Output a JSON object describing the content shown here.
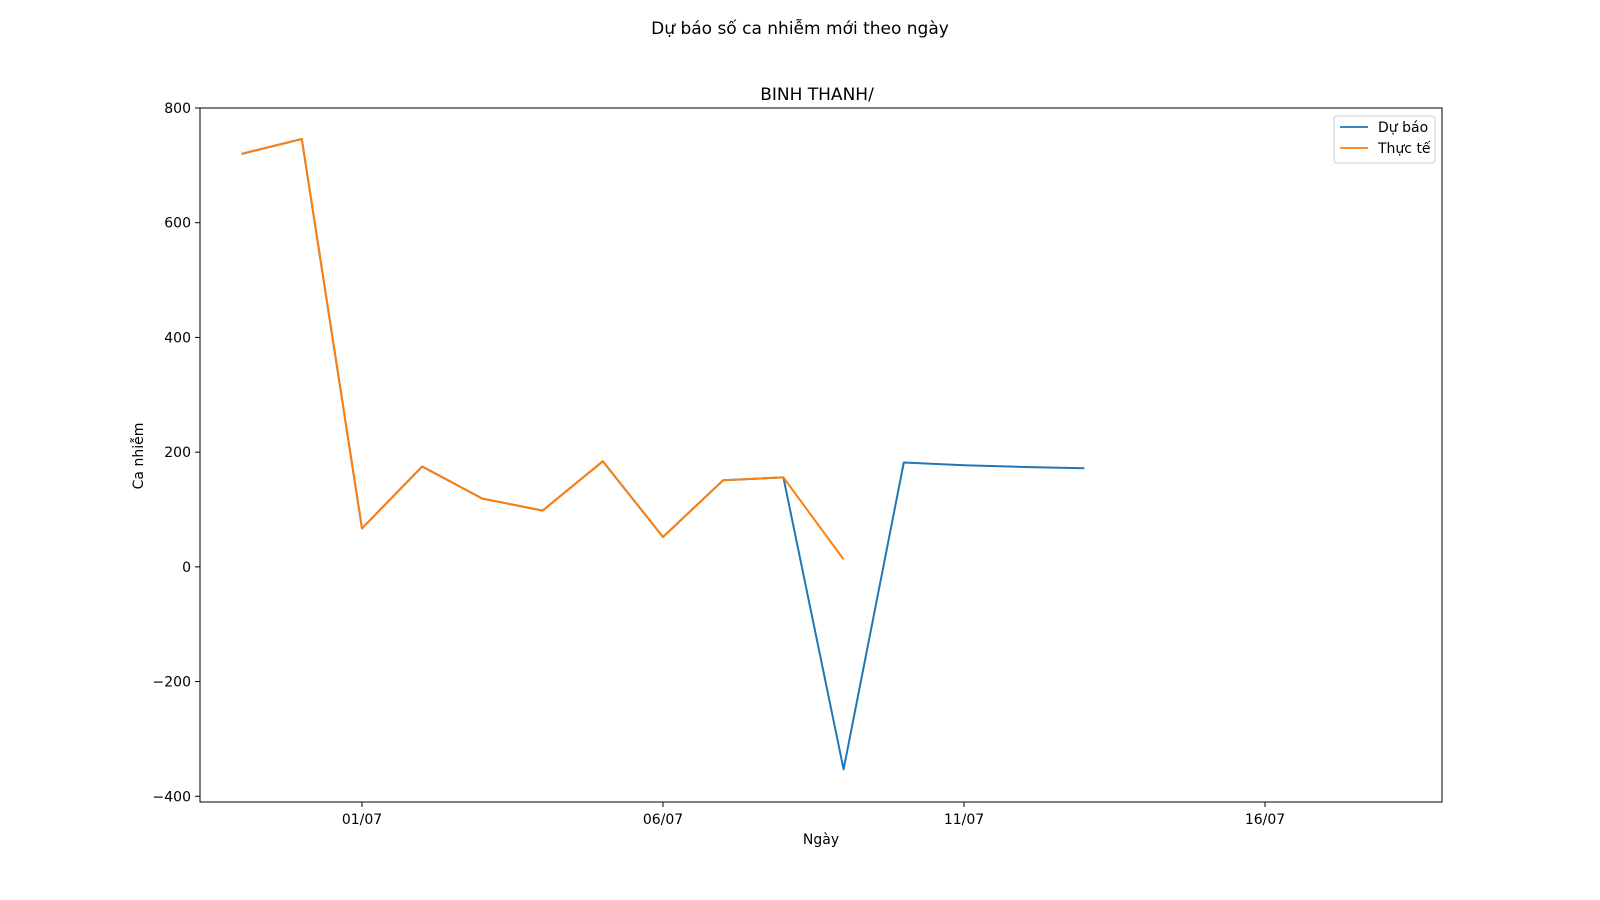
{
  "chart_data": {
    "type": "line",
    "suptitle": "Dự báo số ca nhiễm mới theo ngày",
    "title": "BINH THANH/",
    "xlabel": "Ngày",
    "ylabel": "Ca nhiễm",
    "x_ticks": [
      "01/07",
      "06/07",
      "11/07",
      "16/07"
    ],
    "y_ticks": [
      "800",
      "600",
      "400",
      "200",
      "0",
      "−200",
      "−400"
    ],
    "ylim": [
      -410,
      800
    ],
    "grid": false,
    "legend_position": "top-right",
    "series": [
      {
        "name": "Dự báo",
        "color": "#1f77b4",
        "x": [
          "29/06",
          "30/06",
          "01/07",
          "02/07",
          "03/07",
          "04/07",
          "05/07",
          "06/07",
          "07/07",
          "08/07",
          "09/07",
          "10/07",
          "11/07",
          "12/07",
          "13/07"
        ],
        "values": [
          720,
          746,
          67,
          175,
          119,
          98,
          184,
          52,
          151,
          156,
          -353,
          182,
          177,
          174,
          172
        ]
      },
      {
        "name": "Thực tế",
        "color": "#ff7f0e",
        "x": [
          "29/06",
          "30/06",
          "01/07",
          "02/07",
          "03/07",
          "04/07",
          "05/07",
          "06/07",
          "07/07",
          "08/07",
          "09/07"
        ],
        "values": [
          720,
          746,
          67,
          175,
          119,
          98,
          184,
          52,
          151,
          156,
          13
        ]
      }
    ]
  }
}
